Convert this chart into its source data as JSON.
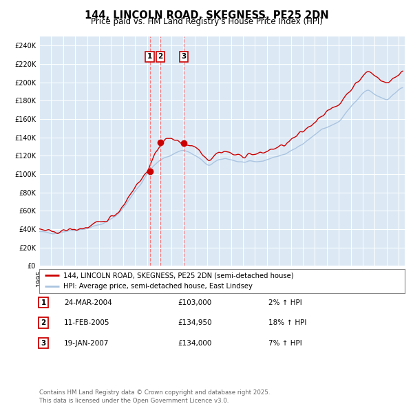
{
  "title": "144, LINCOLN ROAD, SKEGNESS, PE25 2DN",
  "subtitle": "Price paid vs. HM Land Registry's House Price Index (HPI)",
  "background_color": "#ffffff",
  "plot_bg_color": "#dce9f5",
  "hpi_line_color": "#aac4e0",
  "price_line_color": "#cc0000",
  "sale_marker_color": "#cc0000",
  "vline_color": "#ff6666",
  "ylim": [
    0,
    250000
  ],
  "ytick_step": 20000,
  "x_start_year": 1995,
  "x_end_year": 2025,
  "sales": [
    {
      "label": "1",
      "x": 2004.23,
      "price": 103000
    },
    {
      "label": "2",
      "x": 2005.12,
      "price": 134950
    },
    {
      "label": "3",
      "x": 2007.05,
      "price": 134000
    }
  ],
  "legend_line1": "144, LINCOLN ROAD, SKEGNESS, PE25 2DN (semi-detached house)",
  "legend_line2": "HPI: Average price, semi-detached house, East Lindsey",
  "table_rows": [
    {
      "num": "1",
      "date": "24-MAR-2004",
      "price": "£103,000",
      "change": "2% ↑ HPI"
    },
    {
      "num": "2",
      "date": "11-FEB-2005",
      "price": "£134,950",
      "change": "18% ↑ HPI"
    },
    {
      "num": "3",
      "date": "19-JAN-2007",
      "price": "£134,000",
      "change": "7% ↑ HPI"
    }
  ],
  "footer": "Contains HM Land Registry data © Crown copyright and database right 2025.\nThis data is licensed under the Open Government Licence v3.0."
}
